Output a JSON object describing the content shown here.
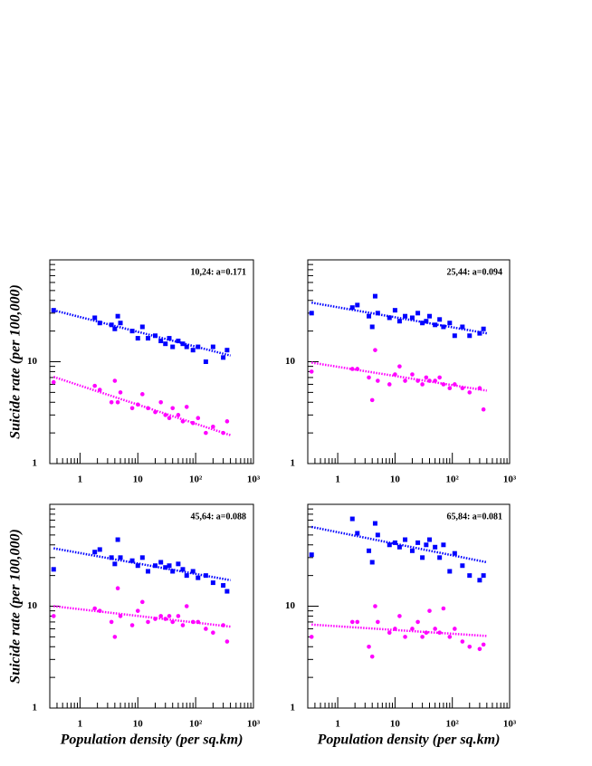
{
  "chart_data": [
    {
      "type": "scatter",
      "annotation": "10,24: a=0.171",
      "ylabel": "Suicide rate (per 100,000)",
      "log_x": true,
      "log_y": true,
      "xlim": [
        0.3,
        1000
      ],
      "ylim": [
        1,
        100
      ],
      "xticks": [
        1,
        10,
        {
          "value": 100,
          "label": "10²"
        },
        {
          "value": 1000,
          "label": "10³"
        }
      ],
      "yticks": [
        1,
        10
      ],
      "x": [
        0.35,
        1.8,
        2.2,
        3.5,
        4,
        4.5,
        5,
        8,
        10,
        12,
        15,
        20,
        25,
        30,
        35,
        40,
        50,
        60,
        70,
        90,
        110,
        150,
        200,
        300,
        350
      ],
      "series": [
        {
          "color": "#0000ff",
          "marker": "square",
          "values": [
            32,
            27,
            24,
            23,
            21,
            28,
            24,
            20,
            17,
            22,
            17,
            18,
            16,
            15,
            17,
            14,
            16,
            15,
            14,
            13,
            14,
            10,
            14,
            11,
            13
          ],
          "fit_x": [
            0.35,
            400
          ],
          "fit_y": [
            32,
            11.5
          ]
        },
        {
          "color": "#ff00ff",
          "marker": "circle",
          "values": [
            6.3,
            5.8,
            5.3,
            4.0,
            6.5,
            4.0,
            5.0,
            3.5,
            3.8,
            4.8,
            3.5,
            3.2,
            4.0,
            3.0,
            2.8,
            3.5,
            3.0,
            2.6,
            3.6,
            2.5,
            2.8,
            2.0,
            2.3,
            2.0,
            2.6
          ],
          "fit_x": [
            0.35,
            400
          ],
          "fit_y": [
            7.1,
            1.9
          ]
        }
      ]
    },
    {
      "type": "scatter",
      "annotation": "25,44: a=0.094",
      "log_x": true,
      "log_y": true,
      "xlim": [
        0.3,
        1000
      ],
      "ylim": [
        1,
        100
      ],
      "xticks": [
        1,
        10,
        {
          "value": 100,
          "label": "10²"
        },
        {
          "value": 1000,
          "label": "10³"
        }
      ],
      "yticks": [
        1,
        10
      ],
      "x": [
        0.35,
        1.8,
        2.2,
        3.5,
        4,
        4.5,
        5,
        8,
        10,
        12,
        15,
        20,
        25,
        30,
        35,
        40,
        50,
        60,
        70,
        90,
        110,
        150,
        200,
        300,
        350
      ],
      "series": [
        {
          "color": "#0000ff",
          "marker": "square",
          "values": [
            30,
            34,
            36,
            28,
            22,
            44,
            30,
            27,
            32,
            25,
            28,
            27,
            30,
            24,
            25,
            28,
            23,
            26,
            22,
            24,
            18,
            22,
            18,
            19,
            21
          ],
          "fit_x": [
            0.35,
            400
          ],
          "fit_y": [
            38,
            19
          ]
        },
        {
          "color": "#ff00ff",
          "marker": "circle",
          "values": [
            8,
            8.5,
            8.5,
            7,
            4.2,
            13,
            6.5,
            6,
            7.5,
            9,
            6.5,
            7.5,
            6.5,
            6,
            7,
            6.5,
            6.5,
            7,
            6,
            5.5,
            6,
            5.5,
            5,
            5.5,
            3.4
          ],
          "fit_x": [
            0.35,
            400
          ],
          "fit_y": [
            9.8,
            5.2
          ]
        }
      ]
    },
    {
      "type": "scatter",
      "annotation": "45,64: a=0.088",
      "ylabel": "Suicide rate (per 100,000)",
      "xlabel": "Population density (per sq.km)",
      "log_x": true,
      "log_y": true,
      "xlim": [
        0.3,
        1000
      ],
      "ylim": [
        1,
        100
      ],
      "xticks": [
        1,
        10,
        {
          "value": 100,
          "label": "10²"
        },
        {
          "value": 1000,
          "label": "10³"
        }
      ],
      "yticks": [
        1,
        10
      ],
      "x": [
        0.35,
        1.8,
        2.2,
        3.5,
        4,
        4.5,
        5,
        8,
        10,
        12,
        15,
        20,
        25,
        30,
        35,
        40,
        50,
        60,
        70,
        90,
        110,
        150,
        200,
        300,
        350
      ],
      "series": [
        {
          "color": "#0000ff",
          "marker": "square",
          "values": [
            23,
            34,
            36,
            30,
            26,
            45,
            30,
            28,
            25,
            30,
            22,
            25,
            27,
            24,
            25,
            22,
            26,
            23,
            20,
            22,
            19,
            20,
            17,
            16,
            14
          ],
          "fit_x": [
            0.35,
            400
          ],
          "fit_y": [
            37,
            18
          ]
        },
        {
          "color": "#ff00ff",
          "marker": "circle",
          "values": [
            8,
            9.5,
            9,
            7,
            5,
            15,
            8,
            6.5,
            9,
            11,
            7,
            7.5,
            8,
            7.5,
            8,
            7,
            8,
            6.5,
            10,
            7,
            7,
            6,
            5.5,
            6.5,
            4.5
          ],
          "fit_x": [
            0.35,
            400
          ],
          "fit_y": [
            10,
            6.3
          ]
        }
      ]
    },
    {
      "type": "scatter",
      "annotation": "65,84: a=0.081",
      "xlabel": "Population density (per sq.km)",
      "log_x": true,
      "log_y": true,
      "xlim": [
        0.3,
        1000
      ],
      "ylim": [
        1,
        100
      ],
      "xticks": [
        1,
        10,
        {
          "value": 100,
          "label": "10²"
        },
        {
          "value": 1000,
          "label": "10³"
        }
      ],
      "yticks": [
        1,
        10
      ],
      "x": [
        0.35,
        1.8,
        2.2,
        3.5,
        4,
        4.5,
        5,
        8,
        10,
        12,
        15,
        20,
        25,
        30,
        35,
        40,
        50,
        60,
        70,
        90,
        110,
        150,
        200,
        300,
        350
      ],
      "series": [
        {
          "color": "#0000ff",
          "marker": "square",
          "values": [
            32,
            72,
            52,
            35,
            27,
            65,
            50,
            40,
            42,
            38,
            45,
            35,
            42,
            30,
            40,
            45,
            38,
            30,
            40,
            22,
            33,
            25,
            20,
            18,
            20
          ],
          "fit_x": [
            0.35,
            400
          ],
          "fit_y": [
            60,
            27
          ]
        },
        {
          "color": "#ff00ff",
          "marker": "circle",
          "values": [
            5,
            7,
            7,
            4,
            3.2,
            10,
            7,
            5.5,
            6,
            8,
            5,
            6,
            7,
            5,
            5.5,
            9,
            6,
            5.5,
            9.5,
            5,
            6,
            4.5,
            4,
            3.8,
            4.2
          ],
          "fit_x": [
            0.35,
            400
          ],
          "fit_y": [
            6.6,
            5.1
          ]
        }
      ]
    }
  ]
}
